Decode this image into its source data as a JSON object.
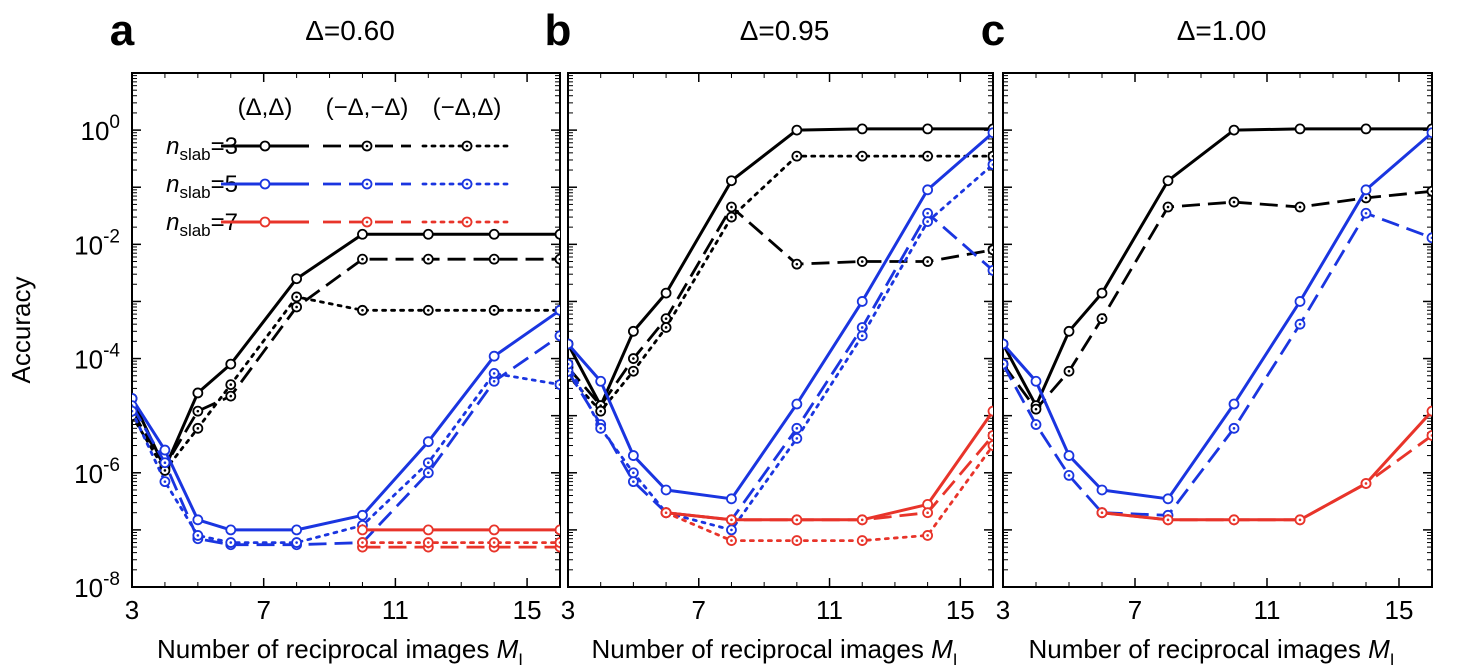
{
  "chart_data": [
    {
      "type": "line",
      "panel_letter": "a",
      "title": "Δ=0.60",
      "xlabel": "Number of reciprocal images M",
      "xlabel_subscript": "I",
      "ylabel": "Accuracy",
      "yscale": "log",
      "xlim": [
        3,
        16
      ],
      "ylim": [
        1e-08,
        10
      ],
      "xticks": [
        3,
        7,
        11,
        15
      ],
      "yticks": [
        1e-08,
        1e-06,
        0.0001,
        0.01,
        1
      ],
      "ytick_labels": [
        {
          "base": "10",
          "exp": "-8"
        },
        {
          "base": "10",
          "exp": "-6"
        },
        {
          "base": "10",
          "exp": "-4"
        },
        {
          "base": "10",
          "exp": "-2"
        },
        {
          "base": "10",
          "exp": "0"
        }
      ],
      "legend": {
        "columns": [
          "(Δ,Δ)",
          "(−Δ,−Δ)",
          "(−Δ,Δ)"
        ],
        "rows": [
          {
            "prefix": "n",
            "subscript": "slab",
            "suffix": "=3",
            "color": "#000000"
          },
          {
            "prefix": "n",
            "subscript": "slab",
            "suffix": "=5",
            "color": "#1a35e0"
          },
          {
            "prefix": "n",
            "subscript": "slab",
            "suffix": "=7",
            "color": "#e8342a"
          }
        ]
      },
      "series": [
        {
          "nslab": 3,
          "style": "solid",
          "color": "#000000",
          "x": [
            3,
            4,
            5,
            6,
            8,
            10,
            12,
            14,
            16
          ],
          "y": [
            2e-05,
            1.2e-06,
            2.5e-05,
            8e-05,
            0.0025,
            0.015,
            0.015,
            0.015,
            0.015
          ]
        },
        {
          "nslab": 3,
          "style": "dashed",
          "color": "#000000",
          "x": [
            3,
            4,
            5,
            6,
            8,
            10,
            12,
            14,
            16
          ],
          "y": [
            1.2e-05,
            1.3e-06,
            1.2e-05,
            2.2e-05,
            0.0008,
            0.0055,
            0.0055,
            0.0055,
            0.0055
          ]
        },
        {
          "nslab": 3,
          "style": "dotted",
          "color": "#000000",
          "x": [
            3,
            4,
            5,
            6,
            8,
            10,
            12,
            14,
            16
          ],
          "y": [
            1e-05,
            1.1e-06,
            6e-06,
            3.5e-05,
            0.0012,
            0.0007,
            0.0007,
            0.0007,
            0.0007
          ]
        },
        {
          "nslab": 5,
          "style": "solid",
          "color": "#1a35e0",
          "x": [
            3,
            4,
            5,
            6,
            8,
            10,
            12,
            14,
            16
          ],
          "y": [
            2e-05,
            2.5e-06,
            1.5e-07,
            1e-07,
            1e-07,
            1.8e-07,
            3.5e-06,
            0.00011,
            0.0007
          ]
        },
        {
          "nslab": 5,
          "style": "dashed",
          "color": "#1a35e0",
          "x": [
            3,
            4,
            5,
            6,
            8,
            10,
            12,
            14,
            16
          ],
          "y": [
            1.5e-05,
            1.5e-06,
            7e-08,
            5.5e-08,
            5.5e-08,
            6e-08,
            1e-06,
            4e-05,
            0.00025
          ]
        },
        {
          "nslab": 5,
          "style": "dotted",
          "color": "#1a35e0",
          "x": [
            3,
            4,
            5,
            6,
            8,
            10,
            12,
            14,
            16
          ],
          "y": [
            1.2e-05,
            7e-07,
            8e-08,
            6e-08,
            6e-08,
            1.2e-07,
            1.5e-06,
            5.5e-05,
            3.5e-05
          ]
        },
        {
          "nslab": 7,
          "style": "solid",
          "color": "#e8342a",
          "x": [
            10,
            12,
            14,
            16
          ],
          "y": [
            1e-07,
            1e-07,
            1e-07,
            1e-07
          ]
        },
        {
          "nslab": 7,
          "style": "dashed",
          "color": "#e8342a",
          "x": [
            10,
            12,
            14,
            16
          ],
          "y": [
            5e-08,
            5e-08,
            5e-08,
            5e-08
          ]
        },
        {
          "nslab": 7,
          "style": "dotted",
          "color": "#e8342a",
          "x": [
            10,
            12,
            14,
            16
          ],
          "y": [
            6e-08,
            6e-08,
            6e-08,
            6e-08
          ]
        }
      ]
    },
    {
      "type": "line",
      "panel_letter": "b",
      "title": "Δ=0.95",
      "xlabel": "Number of reciprocal images M",
      "xlabel_subscript": "I",
      "yscale": "log",
      "xlim": [
        3,
        16
      ],
      "ylim": [
        1e-08,
        10
      ],
      "xticks": [
        3,
        7,
        11,
        15
      ],
      "series": [
        {
          "nslab": 3,
          "style": "solid",
          "color": "#000000",
          "x": [
            3,
            4,
            5,
            6,
            8,
            10,
            12,
            14,
            16
          ],
          "y": [
            0.00018,
            1.5e-05,
            0.0003,
            0.0014,
            0.13,
            1,
            1.05,
            1.05,
            1.05
          ]
        },
        {
          "nslab": 3,
          "style": "dashed",
          "color": "#000000",
          "x": [
            3,
            4,
            5,
            6,
            8,
            10,
            12,
            14,
            16
          ],
          "y": [
            7e-05,
            1.5e-05,
            0.0001,
            0.0005,
            0.045,
            0.0045,
            0.005,
            0.005,
            0.008
          ]
        },
        {
          "nslab": 3,
          "style": "dotted",
          "color": "#000000",
          "x": [
            3,
            4,
            5,
            6,
            8,
            10,
            12,
            14,
            16
          ],
          "y": [
            5e-05,
            1.2e-05,
            6e-05,
            0.00035,
            0.03,
            0.35,
            0.35,
            0.35,
            0.35
          ]
        },
        {
          "nslab": 5,
          "style": "solid",
          "color": "#1a35e0",
          "x": [
            3,
            4,
            5,
            6,
            8,
            10,
            12,
            14,
            16
          ],
          "y": [
            0.00018,
            4e-05,
            2e-06,
            5e-07,
            3.5e-07,
            1.6e-05,
            0.001,
            0.09,
            0.9
          ]
        },
        {
          "nslab": 5,
          "style": "dashed",
          "color": "#1a35e0",
          "x": [
            3,
            4,
            5,
            6,
            8,
            10,
            12,
            14,
            16
          ],
          "y": [
            6e-05,
            7e-06,
            7e-07,
            2e-07,
            1.5e-07,
            6e-06,
            0.00035,
            0.035,
            0.0035
          ]
        },
        {
          "nslab": 5,
          "style": "dotted",
          "color": "#1a35e0",
          "x": [
            3,
            4,
            5,
            6,
            8,
            10,
            12,
            14,
            16
          ],
          "y": [
            8e-05,
            6e-06,
            1e-06,
            2e-07,
            1e-07,
            4e-06,
            0.00025,
            0.025,
            0.25
          ]
        },
        {
          "nslab": 7,
          "style": "solid",
          "color": "#e8342a",
          "x": [
            6,
            8,
            10,
            12,
            14,
            16
          ],
          "y": [
            2e-07,
            1.5e-07,
            1.5e-07,
            1.5e-07,
            2.8e-07,
            1.2e-05
          ]
        },
        {
          "nslab": 7,
          "style": "dashed",
          "color": "#e8342a",
          "x": [
            6,
            8,
            10,
            12,
            14,
            16
          ],
          "y": [
            2e-07,
            1.5e-07,
            1.5e-07,
            1.5e-07,
            2e-07,
            4.5e-06
          ]
        },
        {
          "nslab": 7,
          "style": "dotted",
          "color": "#e8342a",
          "x": [
            6,
            8,
            10,
            12,
            14,
            16
          ],
          "y": [
            2e-07,
            6.5e-08,
            6.5e-08,
            6.5e-08,
            8e-08,
            3e-06
          ]
        }
      ]
    },
    {
      "type": "line",
      "panel_letter": "c",
      "title": "Δ=1.00",
      "xlabel": "Number of reciprocal images M",
      "xlabel_subscript": "I",
      "yscale": "log",
      "xlim": [
        3,
        16
      ],
      "ylim": [
        1e-08,
        10
      ],
      "xticks": [
        3,
        7,
        11,
        15
      ],
      "series": [
        {
          "nslab": 3,
          "style": "solid",
          "color": "#000000",
          "x": [
            3,
            4,
            5,
            6,
            8,
            10,
            12,
            14,
            16
          ],
          "y": [
            0.00018,
            1.5e-05,
            0.0003,
            0.0014,
            0.13,
            1,
            1.05,
            1.05,
            1.05
          ]
        },
        {
          "nslab": 3,
          "style": "dashed",
          "color": "#000000",
          "x": [
            3,
            4,
            5,
            6,
            8,
            10,
            12,
            14,
            16
          ],
          "y": [
            8e-05,
            1.3e-05,
            6e-05,
            0.0005,
            0.045,
            0.055,
            0.045,
            0.065,
            0.085
          ]
        },
        {
          "nslab": 5,
          "style": "solid",
          "color": "#1a35e0",
          "x": [
            3,
            4,
            5,
            6,
            8,
            10,
            12,
            14,
            16
          ],
          "y": [
            0.00018,
            4e-05,
            2e-06,
            5e-07,
            3.5e-07,
            1.6e-05,
            0.001,
            0.09,
            0.9
          ]
        },
        {
          "nslab": 5,
          "style": "dashed",
          "color": "#1a35e0",
          "x": [
            3,
            4,
            5,
            6,
            8,
            10,
            12,
            14,
            16
          ],
          "y": [
            8e-05,
            7e-06,
            9e-07,
            2e-07,
            1.8e-07,
            6e-06,
            0.0004,
            0.035,
            0.013
          ]
        },
        {
          "nslab": 7,
          "style": "solid",
          "color": "#e8342a",
          "x": [
            6,
            8,
            10,
            12,
            14,
            16
          ],
          "y": [
            2e-07,
            1.5e-07,
            1.5e-07,
            1.5e-07,
            6.5e-07,
            1.2e-05
          ]
        },
        {
          "nslab": 7,
          "style": "dashed",
          "color": "#e8342a",
          "x": [
            6,
            8,
            10,
            12,
            14,
            16
          ],
          "y": [
            2e-07,
            1.5e-07,
            1.5e-07,
            1.5e-07,
            6.5e-07,
            4.5e-06
          ]
        }
      ]
    }
  ]
}
